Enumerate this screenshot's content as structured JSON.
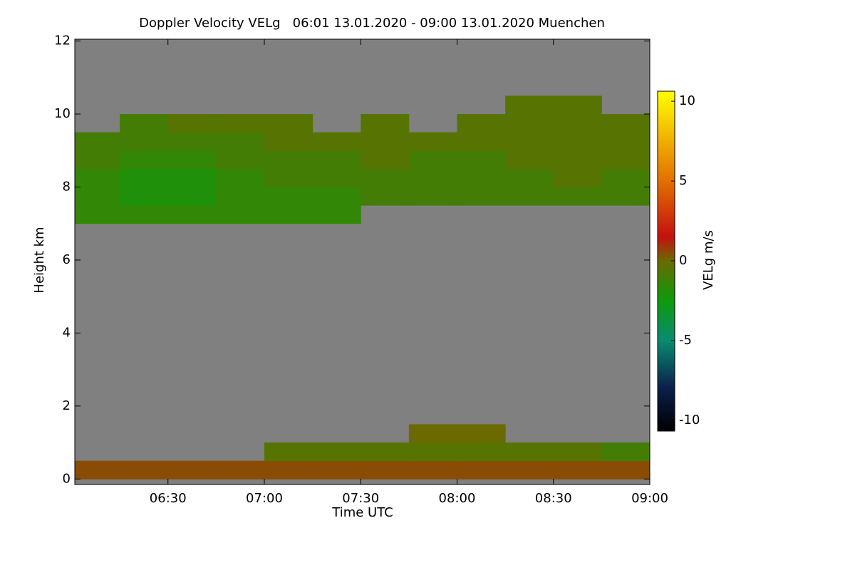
{
  "chart_data": {
    "type": "heatmap",
    "title": "Doppler Velocity VELg   06:01 13.01.2020 - 09:00 13.01.2020 Muenchen",
    "x_label": "Time UTC",
    "y_label": "Height km",
    "colorbar_label": "VELg m/s",
    "background_color": "#808080",
    "xlim": [
      6.0167,
      9.0
    ],
    "xticks": [
      {
        "value": 6.5,
        "label": "06:30"
      },
      {
        "value": 7.0,
        "label": "07:00"
      },
      {
        "value": 7.5,
        "label": "07:30"
      },
      {
        "value": 8.0,
        "label": "08:00"
      },
      {
        "value": 8.5,
        "label": "08:30"
      },
      {
        "value": 9.0,
        "label": "09:00"
      }
    ],
    "ylim": [
      -0.15,
      12.05
    ],
    "yticks": [
      0,
      2,
      4,
      6,
      8,
      10,
      12
    ],
    "clim": [
      -10.67,
      10.63
    ],
    "cticks": [
      -10,
      -5,
      0,
      5,
      10
    ],
    "colormap": [
      {
        "value": -10.67,
        "color": "#000000"
      },
      {
        "value": -8,
        "color": "#0b1f4a"
      },
      {
        "value": -5,
        "color": "#0a8a70"
      },
      {
        "value": -2.5,
        "color": "#0c9a0c"
      },
      {
        "value": 0,
        "color": "#6a6a00"
      },
      {
        "value": 1.5,
        "color": "#c41010"
      },
      {
        "value": 5,
        "color": "#e27000"
      },
      {
        "value": 10.63,
        "color": "#ffff00"
      }
    ],
    "x_edges": [
      6.0,
      6.25,
      6.5,
      6.75,
      7.0,
      7.25,
      7.5,
      7.75,
      8.0,
      8.25,
      8.5,
      8.75,
      9.0
    ],
    "y_edges": [
      0,
      0.5,
      1,
      1.5,
      2,
      2.5,
      3,
      3.5,
      4,
      4.5,
      5,
      5.5,
      6,
      6.5,
      7,
      7.5,
      8,
      8.5,
      9,
      9.5,
      10,
      10.5,
      11,
      11.5,
      12
    ],
    "z": [
      [
        0.5,
        0.5,
        0.5,
        0.5,
        0.5,
        0.5,
        0.5,
        0.5,
        0.5,
        0.5,
        0.5,
        0.5
      ],
      [
        null,
        null,
        null,
        null,
        -0.5,
        -0.5,
        -0.5,
        -0.5,
        -0.5,
        -0.5,
        -0.5,
        -1
      ],
      [
        null,
        null,
        null,
        null,
        null,
        null,
        null,
        0,
        0,
        null,
        null,
        null
      ],
      [
        null,
        null,
        null,
        null,
        null,
        null,
        null,
        null,
        null,
        null,
        null,
        null
      ],
      [
        null,
        null,
        null,
        null,
        null,
        null,
        null,
        null,
        null,
        null,
        null,
        null
      ],
      [
        null,
        null,
        null,
        null,
        null,
        null,
        null,
        null,
        null,
        null,
        null,
        null
      ],
      [
        null,
        null,
        null,
        null,
        null,
        null,
        null,
        null,
        null,
        null,
        null,
        null
      ],
      [
        null,
        null,
        null,
        null,
        null,
        null,
        null,
        null,
        null,
        null,
        null,
        null
      ],
      [
        null,
        null,
        null,
        null,
        null,
        null,
        null,
        null,
        null,
        null,
        null,
        null
      ],
      [
        null,
        null,
        null,
        null,
        null,
        null,
        null,
        null,
        null,
        null,
        null,
        null
      ],
      [
        null,
        null,
        null,
        null,
        null,
        null,
        null,
        null,
        null,
        null,
        null,
        null
      ],
      [
        null,
        null,
        null,
        null,
        null,
        null,
        null,
        null,
        null,
        null,
        null,
        null
      ],
      [
        null,
        null,
        null,
        null,
        null,
        null,
        null,
        null,
        null,
        null,
        null,
        null
      ],
      [
        null,
        null,
        null,
        null,
        null,
        null,
        null,
        null,
        null,
        null,
        null,
        null
      ],
      [
        -1.5,
        -1.5,
        -1.5,
        -1.5,
        -1.5,
        -1.5,
        null,
        null,
        null,
        null,
        null,
        null
      ],
      [
        -1.5,
        -2,
        -2,
        -1.5,
        -1.5,
        -1.5,
        -1,
        -1,
        -1,
        -1,
        -1,
        -1
      ],
      [
        -1.5,
        -2,
        -2,
        -1.5,
        -1,
        -1,
        -1,
        -1,
        -1,
        -1,
        -0.5,
        -1
      ],
      [
        -1,
        -1.5,
        -1.5,
        -1,
        -1,
        -1,
        -0.5,
        -1,
        -1,
        -0.5,
        -0.5,
        -0.5
      ],
      [
        -1,
        -1,
        -1,
        -1,
        -0.5,
        -0.5,
        -0.5,
        -0.5,
        -0.5,
        -0.5,
        -0.5,
        -0.5
      ],
      [
        null,
        -1,
        -0.5,
        -0.5,
        -0.5,
        null,
        -0.5,
        null,
        -0.5,
        -0.5,
        -0.5,
        -0.5
      ],
      [
        null,
        null,
        null,
        null,
        null,
        null,
        null,
        null,
        null,
        -0.5,
        -0.5,
        null
      ],
      [
        null,
        null,
        null,
        null,
        null,
        null,
        null,
        null,
        null,
        null,
        null,
        null
      ],
      [
        null,
        null,
        null,
        null,
        null,
        null,
        null,
        null,
        null,
        null,
        null,
        null
      ],
      [
        null,
        null,
        null,
        null,
        null,
        null,
        null,
        null,
        null,
        null,
        null,
        null
      ]
    ]
  }
}
